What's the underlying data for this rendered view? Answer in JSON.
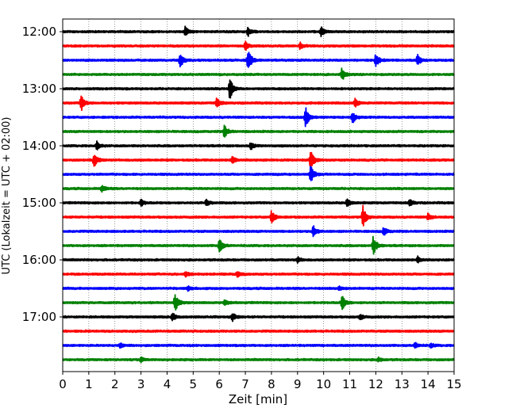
{
  "chart_data": {
    "type": "line",
    "title": "",
    "xlabel": "Zeit  [min]",
    "ylabel": "UTC (Lokalzeit = UTC + 02:00)",
    "xlim": [
      0,
      15
    ],
    "x_ticks": [
      0,
      1,
      2,
      3,
      4,
      5,
      6,
      7,
      8,
      9,
      10,
      11,
      12,
      13,
      14,
      15
    ],
    "y_tick_labels": [
      "12:00",
      "13:00",
      "14:00",
      "15:00",
      "16:00",
      "17:00"
    ],
    "grid": "vertical dotted at each minute",
    "trace_colors": [
      "#000000",
      "#ff0000",
      "#0000ff",
      "#008000"
    ],
    "traces": [
      {
        "start": "12:00",
        "events": [
          [
            4.7,
            0.35
          ],
          [
            7.1,
            0.3
          ],
          [
            9.9,
            0.35
          ]
        ]
      },
      {
        "start": "12:15",
        "events": [
          [
            7.0,
            0.3
          ],
          [
            9.1,
            0.25
          ]
        ]
      },
      {
        "start": "12:30",
        "events": [
          [
            4.5,
            0.55
          ],
          [
            7.1,
            0.85
          ],
          [
            12.0,
            0.5
          ],
          [
            13.6,
            0.45
          ]
        ]
      },
      {
        "start": "12:45",
        "events": [
          [
            10.7,
            0.45
          ]
        ]
      },
      {
        "start": "13:00",
        "events": [
          [
            6.4,
            0.8
          ]
        ]
      },
      {
        "start": "13:15",
        "events": [
          [
            0.7,
            0.6
          ],
          [
            5.9,
            0.35
          ],
          [
            11.2,
            0.3
          ]
        ]
      },
      {
        "start": "13:30",
        "events": [
          [
            9.3,
            0.8
          ],
          [
            11.1,
            0.45
          ]
        ]
      },
      {
        "start": "13:45",
        "events": [
          [
            6.2,
            0.5
          ]
        ]
      },
      {
        "start": "14:00",
        "events": [
          [
            1.3,
            0.3
          ],
          [
            7.2,
            0.3
          ]
        ]
      },
      {
        "start": "14:15",
        "events": [
          [
            1.2,
            0.5
          ],
          [
            9.5,
            0.75
          ],
          [
            6.5,
            0.3
          ]
        ]
      },
      {
        "start": "14:30",
        "events": [
          [
            9.5,
            0.65
          ]
        ]
      },
      {
        "start": "14:45",
        "events": [
          [
            1.5,
            0.25
          ]
        ]
      },
      {
        "start": "15:00",
        "events": [
          [
            3.0,
            0.25
          ],
          [
            5.5,
            0.25
          ],
          [
            10.9,
            0.3
          ],
          [
            13.3,
            0.25
          ]
        ]
      },
      {
        "start": "15:15",
        "events": [
          [
            8.0,
            0.5
          ],
          [
            11.5,
            0.8
          ],
          [
            14.0,
            0.25
          ]
        ]
      },
      {
        "start": "15:30",
        "events": [
          [
            9.6,
            0.45
          ],
          [
            12.3,
            0.3
          ]
        ]
      },
      {
        "start": "15:45",
        "events": [
          [
            6.0,
            0.55
          ],
          [
            11.9,
            0.75
          ]
        ]
      },
      {
        "start": "16:00",
        "events": [
          [
            9.0,
            0.2
          ],
          [
            13.6,
            0.25
          ]
        ]
      },
      {
        "start": "16:15",
        "events": [
          [
            4.7,
            0.2
          ],
          [
            6.7,
            0.2
          ]
        ]
      },
      {
        "start": "16:30",
        "events": [
          [
            4.8,
            0.15
          ],
          [
            10.6,
            0.15
          ]
        ]
      },
      {
        "start": "16:45",
        "events": [
          [
            4.3,
            0.65
          ],
          [
            10.7,
            0.55
          ],
          [
            6.2,
            0.25
          ]
        ]
      },
      {
        "start": "17:00",
        "events": [
          [
            4.2,
            0.3
          ],
          [
            6.5,
            0.3
          ],
          [
            11.4,
            0.2
          ]
        ]
      },
      {
        "start": "17:15",
        "events": []
      },
      {
        "start": "17:30",
        "events": [
          [
            2.2,
            0.15
          ],
          [
            13.5,
            0.2
          ],
          [
            14.1,
            0.15
          ]
        ]
      },
      {
        "start": "17:45",
        "events": [
          [
            3.0,
            0.15
          ],
          [
            12.1,
            0.15
          ]
        ]
      }
    ]
  }
}
